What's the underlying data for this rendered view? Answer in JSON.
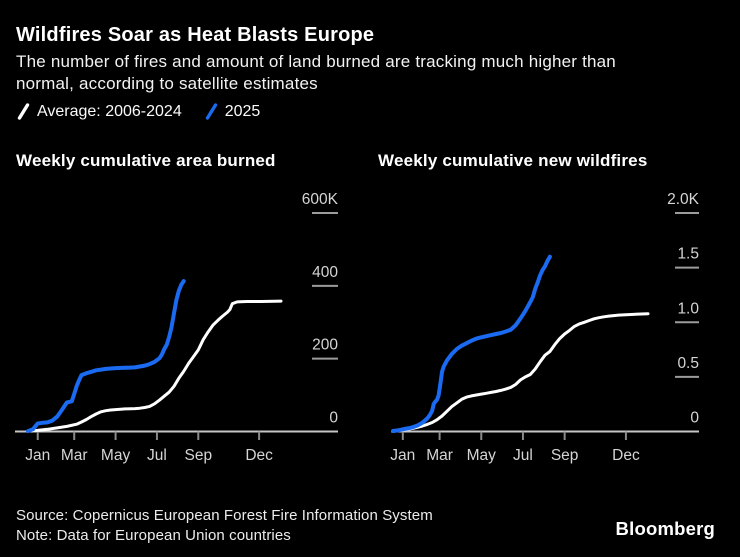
{
  "header": {
    "title": "Wildfires Soar as Heat Blasts Europe",
    "subtitle_line1": "The number of fires and amount of land burned are tracking much higher than",
    "subtitle_line2": "normal, according to satellite estimates"
  },
  "legend": {
    "items": [
      {
        "label": "Average: 2006-2024",
        "color": "#ffffff"
      },
      {
        "label": "2025",
        "color": "#1a6bf2"
      }
    ]
  },
  "colors": {
    "background": "#000000",
    "axis_line": "#c6c6c6",
    "axis_tick": "#8a8a8a",
    "grid_dash": "#9c9c9c",
    "tick_label": "#d5d5d5",
    "series_average": "#ffffff",
    "series_2025": "#1a6bf2"
  },
  "footer": {
    "source": "Source: Copernicus European Forest Fire Information System",
    "note": "Note: Data for European Union countries",
    "brand": "Bloomberg"
  },
  "chart_data": [
    {
      "type": "line",
      "title": "Weekly cumulative area burned",
      "x_unit": "week_of_year",
      "x_range": [
        0,
        52
      ],
      "y_max": 600000,
      "grid": "tick-dashes-right",
      "legend_position": "top-shared",
      "x_ticks": [
        {
          "label": "Jan",
          "week": 2
        },
        {
          "label": "Mar",
          "week": 9.5
        },
        {
          "label": "May",
          "week": 18
        },
        {
          "label": "Jul",
          "week": 26.5
        },
        {
          "label": "Sep",
          "week": 35
        },
        {
          "label": "Dec",
          "week": 47.5
        }
      ],
      "y_ticks": [
        {
          "label": "600K",
          "value": 600000
        },
        {
          "label": "400",
          "value": 400000
        },
        {
          "label": "200",
          "value": 200000
        },
        {
          "label": "0",
          "value": 0
        }
      ],
      "series": [
        {
          "name": "Average: 2006-2024",
          "color": "#ffffff",
          "points": [
            [
              0,
              1000
            ],
            [
              2,
              3000
            ],
            [
              4,
              6000
            ],
            [
              6,
              10000
            ],
            [
              8,
              14000
            ],
            [
              10,
              20000
            ],
            [
              11,
              26000
            ],
            [
              12,
              33000
            ],
            [
              13,
              41000
            ],
            [
              14,
              48000
            ],
            [
              15,
              54000
            ],
            [
              16,
              57000
            ],
            [
              17,
              59000
            ],
            [
              18,
              60000
            ],
            [
              20,
              62000
            ],
            [
              22,
              63000
            ],
            [
              23,
              64000
            ],
            [
              24,
              66000
            ],
            [
              25,
              69000
            ],
            [
              26,
              76000
            ],
            [
              27,
              86000
            ],
            [
              28,
              97000
            ],
            [
              29,
              108000
            ],
            [
              30,
              124000
            ],
            [
              31,
              146000
            ],
            [
              32,
              165000
            ],
            [
              33,
              187000
            ],
            [
              34,
              205000
            ],
            [
              35,
              224000
            ],
            [
              36,
              252000
            ],
            [
              37,
              273000
            ],
            [
              38,
              292000
            ],
            [
              39,
              305000
            ],
            [
              40,
              317000
            ],
            [
              41,
              328000
            ],
            [
              41.5,
              335000
            ],
            [
              42,
              351000
            ],
            [
              43,
              356000
            ],
            [
              45,
              357000
            ],
            [
              48,
              357000
            ],
            [
              52,
              358000
            ]
          ]
        },
        {
          "name": "2025",
          "color": "#1a6bf2",
          "points": [
            [
              0,
              1000
            ],
            [
              1,
              6000
            ],
            [
              2,
              22000
            ],
            [
              3,
              24000
            ],
            [
              4,
              25000
            ],
            [
              5,
              30000
            ],
            [
              6,
              41000
            ],
            [
              7,
              60000
            ],
            [
              8,
              80000
            ],
            [
              9,
              83000
            ],
            [
              9.5,
              103000
            ],
            [
              10,
              125000
            ],
            [
              10.5,
              141000
            ],
            [
              11,
              155000
            ],
            [
              12,
              160000
            ],
            [
              13,
              164000
            ],
            [
              14,
              168000
            ],
            [
              15,
              170000
            ],
            [
              16,
              172000
            ],
            [
              18,
              174000
            ],
            [
              20,
              175000
            ],
            [
              22,
              176000
            ],
            [
              24,
              181000
            ],
            [
              25,
              185000
            ],
            [
              26,
              191000
            ],
            [
              27,
              201000
            ],
            [
              27.5,
              211000
            ],
            [
              28,
              226000
            ],
            [
              28.5,
              238000
            ],
            [
              29,
              259000
            ],
            [
              29.5,
              286000
            ],
            [
              30,
              325000
            ],
            [
              30.5,
              361000
            ],
            [
              31,
              386000
            ],
            [
              31.5,
              403000
            ],
            [
              32,
              413000
            ]
          ]
        }
      ]
    },
    {
      "type": "line",
      "title": "Weekly cumulative new wildfires",
      "x_unit": "week_of_year",
      "x_range": [
        0,
        52
      ],
      "y_max": 2000,
      "grid": "tick-dashes-right",
      "legend_position": "top-shared",
      "x_ticks": [
        {
          "label": "Jan",
          "week": 2
        },
        {
          "label": "Mar",
          "week": 9.5
        },
        {
          "label": "May",
          "week": 18
        },
        {
          "label": "Jul",
          "week": 26.5
        },
        {
          "label": "Sep",
          "week": 35
        },
        {
          "label": "Dec",
          "week": 47.5
        }
      ],
      "y_ticks": [
        {
          "label": "2.0K",
          "value": 2000
        },
        {
          "label": "1.5",
          "value": 1500
        },
        {
          "label": "1.0",
          "value": 1000
        },
        {
          "label": "0.5",
          "value": 500
        },
        {
          "label": "0",
          "value": 0
        }
      ],
      "series": [
        {
          "name": "Average: 2006-2024",
          "color": "#ffffff",
          "points": [
            [
              0,
              2
            ],
            [
              2,
              12
            ],
            [
              4,
              28
            ],
            [
              5,
              38
            ],
            [
              6,
              50
            ],
            [
              7,
              65
            ],
            [
              8,
              82
            ],
            [
              9,
              108
            ],
            [
              10,
              142
            ],
            [
              11,
              185
            ],
            [
              12,
              228
            ],
            [
              13,
              262
            ],
            [
              14,
              295
            ],
            [
              15,
              315
            ],
            [
              16,
              326
            ],
            [
              17,
              334
            ],
            [
              18,
              342
            ],
            [
              19,
              350
            ],
            [
              20,
              358
            ],
            [
              21,
              366
            ],
            [
              22,
              376
            ],
            [
              23,
              388
            ],
            [
              24,
              404
            ],
            [
              25,
              430
            ],
            [
              26,
              472
            ],
            [
              27,
              500
            ],
            [
              28,
              522
            ],
            [
              29,
              572
            ],
            [
              30,
              638
            ],
            [
              31,
              698
            ],
            [
              32,
              732
            ],
            [
              33,
              795
            ],
            [
              34,
              850
            ],
            [
              35,
              892
            ],
            [
              36,
              925
            ],
            [
              37,
              962
            ],
            [
              38,
              985
            ],
            [
              39,
              1000
            ],
            [
              40,
              1016
            ],
            [
              41,
              1032
            ],
            [
              42,
              1042
            ],
            [
              43,
              1050
            ],
            [
              44,
              1056
            ],
            [
              45,
              1061
            ],
            [
              46,
              1065
            ],
            [
              48,
              1070
            ],
            [
              50,
              1075
            ],
            [
              52,
              1078
            ]
          ]
        },
        {
          "name": "2025",
          "color": "#1a6bf2",
          "points": [
            [
              0,
              5
            ],
            [
              1,
              10
            ],
            [
              2,
              20
            ],
            [
              3,
              28
            ],
            [
              4,
              38
            ],
            [
              5,
              55
            ],
            [
              6,
              80
            ],
            [
              7,
              120
            ],
            [
              7.5,
              150
            ],
            [
              8,
              190
            ],
            [
              8.3,
              252
            ],
            [
              8.6,
              272
            ],
            [
              9,
              292
            ],
            [
              9.3,
              330
            ],
            [
              9.6,
              420
            ],
            [
              10,
              545
            ],
            [
              10.3,
              590
            ],
            [
              10.7,
              625
            ],
            [
              11,
              650
            ],
            [
              11.5,
              680
            ],
            [
              12,
              710
            ],
            [
              13,
              755
            ],
            [
              14,
              785
            ],
            [
              15,
              808
            ],
            [
              16,
              832
            ],
            [
              17,
              850
            ],
            [
              18,
              862
            ],
            [
              19,
              872
            ],
            [
              20,
              882
            ],
            [
              21,
              892
            ],
            [
              22,
              902
            ],
            [
              23,
              915
            ],
            [
              24,
              932
            ],
            [
              25,
              972
            ],
            [
              26,
              1035
            ],
            [
              27,
              1105
            ],
            [
              28,
              1185
            ],
            [
              28.5,
              1230
            ],
            [
              29,
              1305
            ],
            [
              29.5,
              1365
            ],
            [
              30,
              1430
            ],
            [
              30.5,
              1478
            ],
            [
              31,
              1512
            ],
            [
              31.5,
              1562
            ],
            [
              32,
              1600
            ]
          ]
        }
      ]
    }
  ]
}
